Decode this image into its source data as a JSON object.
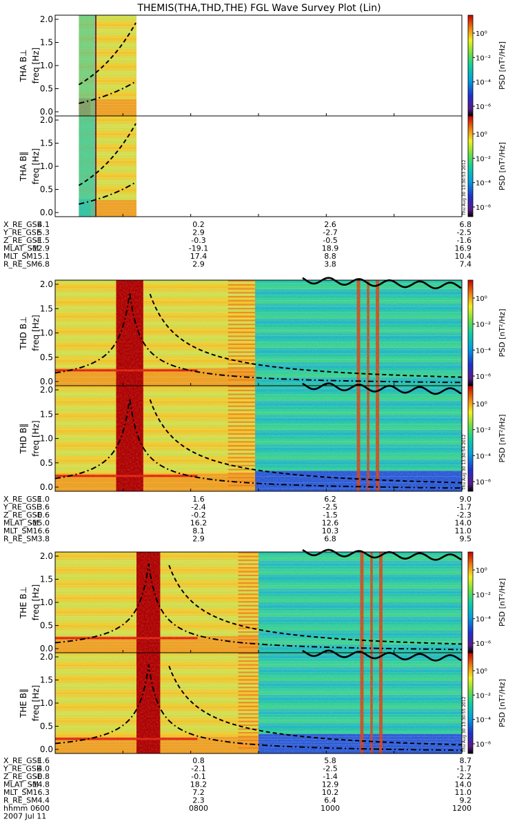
{
  "title": "THEMIS(THA,THD,THE) FGL Wave Survey Plot (Lin)",
  "date_label": "2007 Jul 11",
  "time_row": {
    "label": "hhmm",
    "values": [
      "0600",
      "0800",
      "1000",
      "1200"
    ]
  },
  "colorbar": {
    "label": "PSD [nT²/Hz]",
    "ticks": [
      "10⁰",
      "10⁻²",
      "10⁻⁴",
      "10⁻⁶"
    ]
  },
  "panel_axis": {
    "unit_label": "freq [Hz]",
    "ticks": [
      "2.0",
      "1.5",
      "1.0",
      "0.5",
      "0.0"
    ]
  },
  "chart_data": [
    {
      "type": "heatmap",
      "probe": "THA",
      "panels": [
        "THA B⊥",
        "THA B‖"
      ],
      "stamp": "Thu Aug 30 13:30:53 2012",
      "ylim": [
        0,
        2
      ],
      "data_span_hours": [
        6.35,
        7.2
      ],
      "ephemeris": [
        {
          "label": "X_RE_GSE",
          "values": [
            "4.1",
            "0.2",
            "2.6",
            "6.8"
          ]
        },
        {
          "label": "Y_RE_GSE",
          "values": [
            "5.3",
            "2.9",
            "-2.7",
            "-2.5"
          ]
        },
        {
          "label": "Z_RE_GSE",
          "values": [
            "-1.5",
            "-0.3",
            "-0.5",
            "-1.6"
          ]
        },
        {
          "label": "MLAT_SM",
          "values": [
            "-12.9",
            "-19.1",
            "18.9",
            "16.9"
          ]
        },
        {
          "label": "MLT_SM",
          "values": [
            "15.1",
            "17.4",
            "8.8",
            "10.4"
          ]
        },
        {
          "label": "R_RE_SM",
          "values": [
            "6.8",
            "2.9",
            "3.8",
            "7.4"
          ]
        }
      ]
    },
    {
      "type": "heatmap",
      "probe": "THD",
      "panels": [
        "THD B⊥",
        "THD B‖"
      ],
      "stamp": "Thu Aug 30 13:30:54 2012",
      "ylim": [
        0,
        2
      ],
      "data_span_hours": [
        6.0,
        12.0
      ],
      "ephemeris": [
        {
          "label": "X_RE_GSE",
          "values": [
            "1.0",
            "1.6",
            "6.2",
            "9.0"
          ]
        },
        {
          "label": "Y_RE_GSE",
          "values": [
            "3.6",
            "-2.4",
            "-2.5",
            "-1.7"
          ]
        },
        {
          "label": "Z_RE_GSE",
          "values": [
            "-0.6",
            "-0.2",
            "-1.5",
            "-2.3"
          ]
        },
        {
          "label": "MLAT_SM",
          "values": [
            "-15.0",
            "16.2",
            "12.6",
            "14.0"
          ]
        },
        {
          "label": "MLT_SM",
          "values": [
            "16.6",
            "8.1",
            "10.3",
            "11.0"
          ]
        },
        {
          "label": "R_RE_SM",
          "values": [
            "3.8",
            "2.9",
            "6.8",
            "9.5"
          ]
        }
      ]
    },
    {
      "type": "heatmap",
      "probe": "THE",
      "panels": [
        "THE B⊥",
        "THE B‖"
      ],
      "stamp": "Thu Aug 30 13:30:55 2012",
      "ylim": [
        0,
        2
      ],
      "data_span_hours": [
        6.0,
        12.0
      ],
      "ephemeris": [
        {
          "label": "X_RE_GSE",
          "values": [
            "1.6",
            "0.8",
            "5.8",
            "8.7"
          ]
        },
        {
          "label": "Y_RE_GSE",
          "values": [
            "4.0",
            "-2.1",
            "-2.5",
            "-1.7"
          ]
        },
        {
          "label": "Z_RE_GSE",
          "values": [
            "-0.8",
            "-0.1",
            "-1.4",
            "-2.2"
          ]
        },
        {
          "label": "MLAT_SM",
          "values": [
            "-14.8",
            "18.2",
            "12.9",
            "14.0"
          ]
        },
        {
          "label": "MLT_SM",
          "values": [
            "16.3",
            "7.2",
            "10.2",
            "11.0"
          ]
        },
        {
          "label": "R_RE_SM",
          "values": [
            "4.4",
            "2.3",
            "6.4",
            "9.2"
          ]
        }
      ]
    }
  ]
}
